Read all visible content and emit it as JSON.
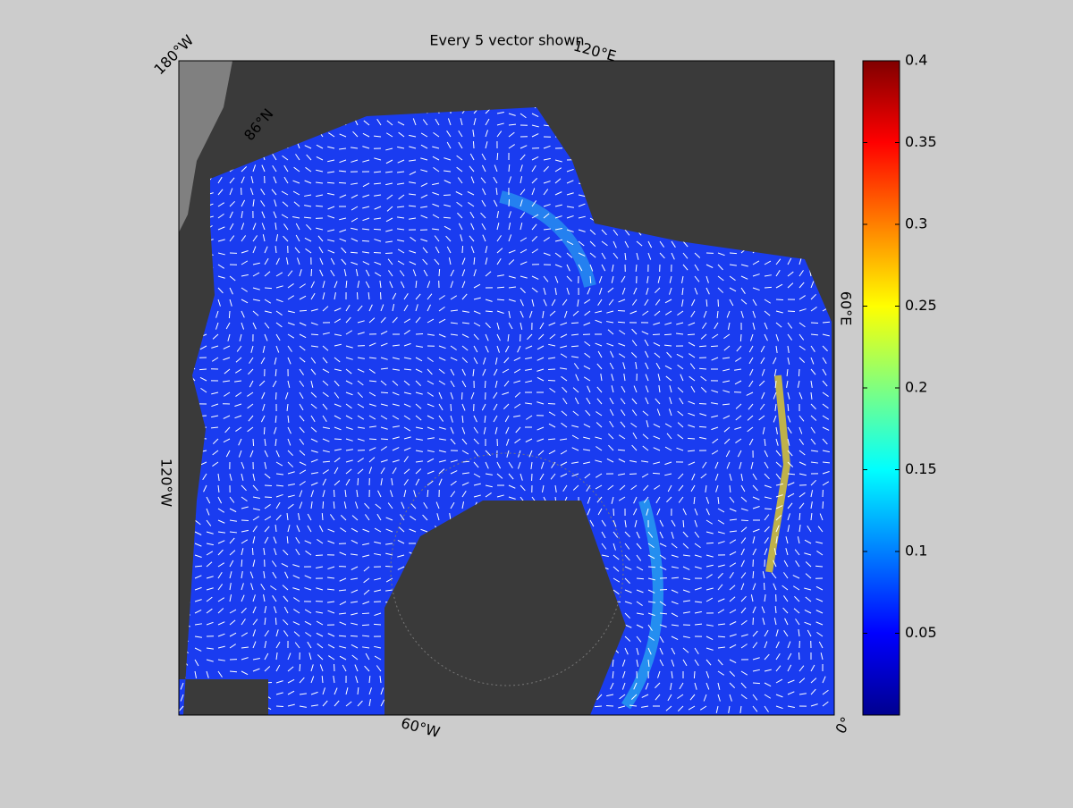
{
  "title": "Every 5 vector shown",
  "map_labels": [
    "180°W",
    "120°E",
    "60°E",
    "0°",
    "60°W",
    "120°W",
    "86°N"
  ],
  "colorbar": {
    "ylim": [
      0,
      0.4
    ],
    "yticks": [
      0.05,
      0.1,
      0.15,
      0.2,
      0.25,
      0.3,
      0.35,
      0.4
    ]
  }
}
